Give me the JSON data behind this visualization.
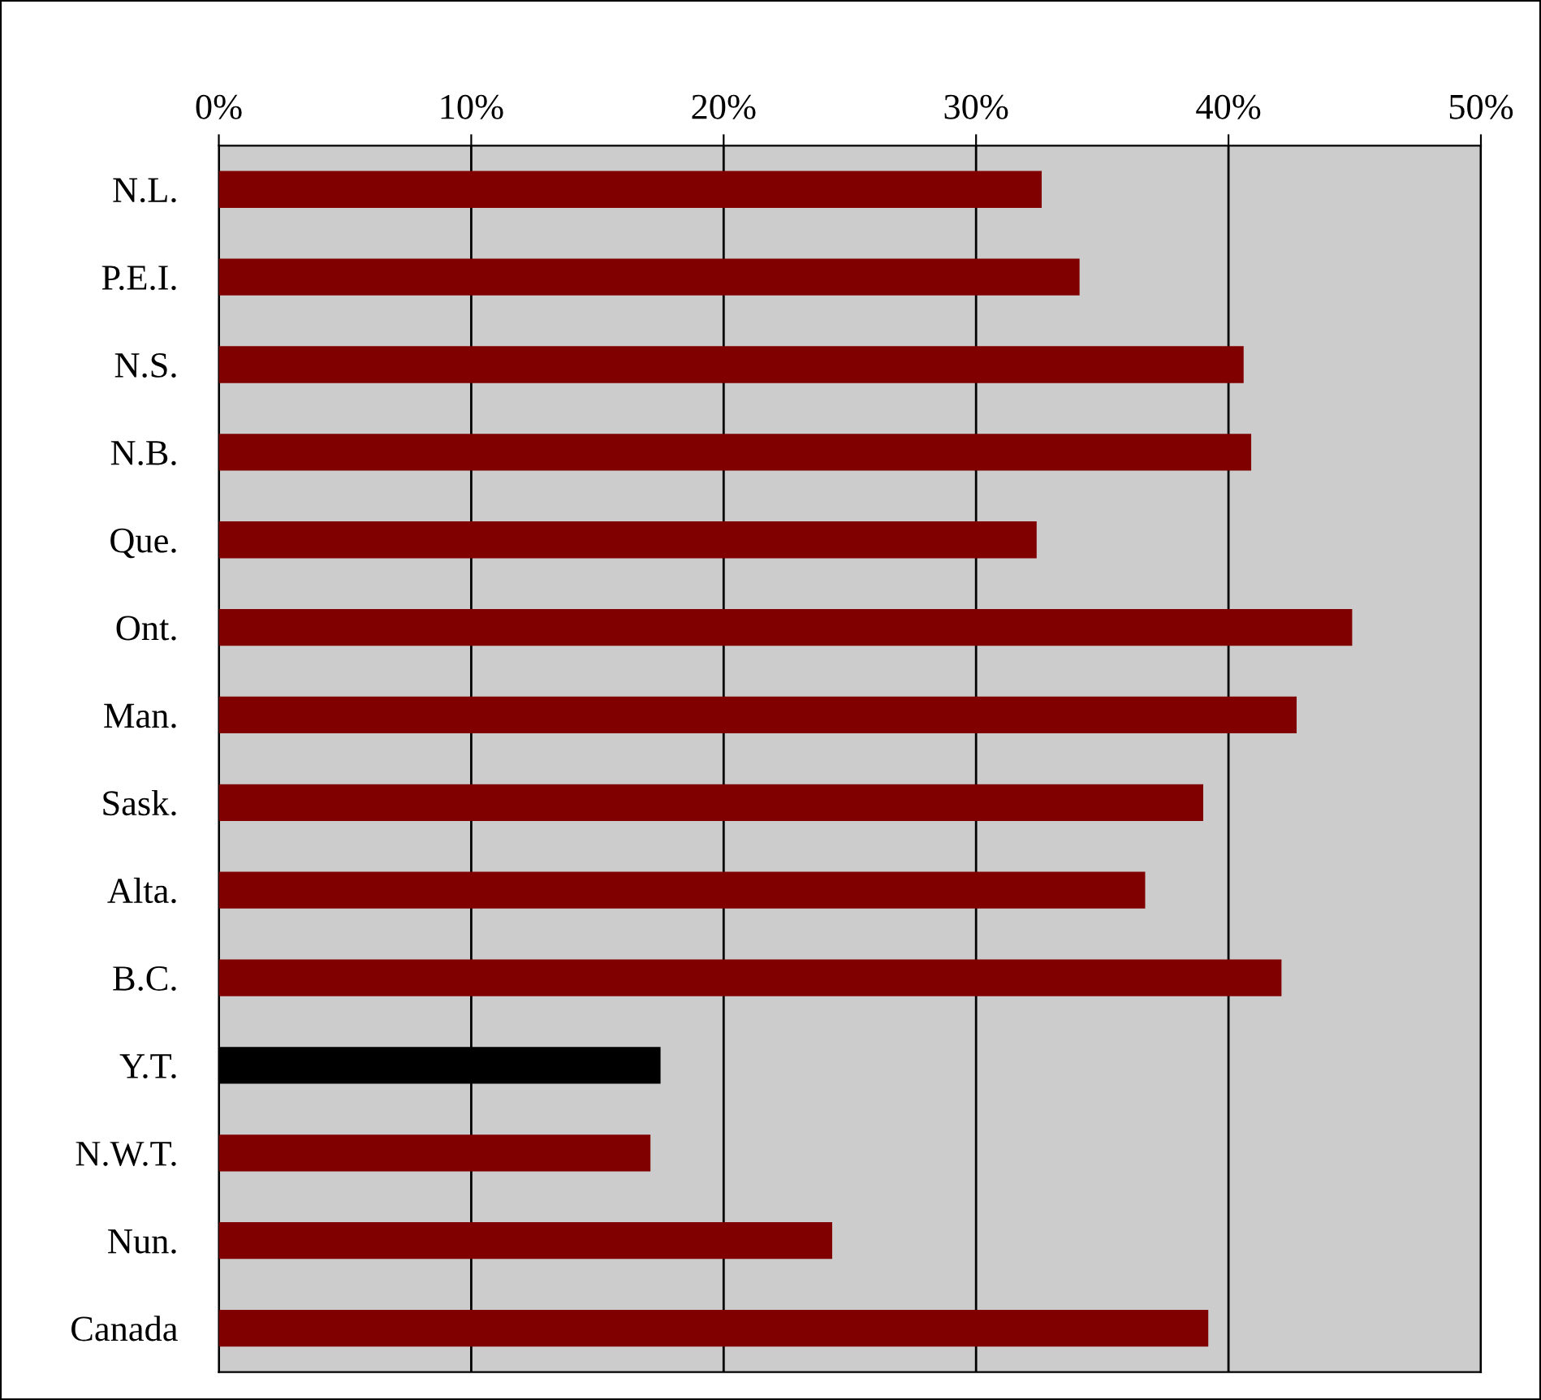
{
  "chart_data": {
    "type": "bar",
    "orientation": "horizontal",
    "categories": [
      "N.L.",
      "P.E.I.",
      "N.S.",
      "N.B.",
      "Que.",
      "Ont.",
      "Man.",
      "Sask.",
      "Alta.",
      "B.C.",
      "Y.T.",
      "N.W.T.",
      "Nun.",
      "Canada"
    ],
    "values": [
      32.6,
      34.1,
      40.6,
      40.9,
      32.4,
      44.9,
      42.7,
      39.0,
      36.7,
      42.1,
      17.5,
      17.1,
      24.3,
      39.2
    ],
    "colors": [
      "#800000",
      "#800000",
      "#800000",
      "#800000",
      "#800000",
      "#800000",
      "#800000",
      "#800000",
      "#800000",
      "#800000",
      "#000000",
      "#800000",
      "#800000",
      "#800000"
    ],
    "xlim": [
      0,
      50
    ],
    "xticks": [
      {
        "value": 0,
        "label": "0%"
      },
      {
        "value": 10,
        "label": "10%"
      },
      {
        "value": 20,
        "label": "20%"
      },
      {
        "value": 30,
        "label": "30%"
      },
      {
        "value": 40,
        "label": "40%"
      },
      {
        "value": 50,
        "label": "50%"
      }
    ],
    "grid": "x"
  }
}
